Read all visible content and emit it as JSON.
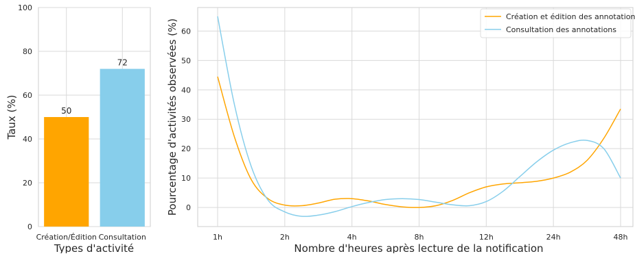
{
  "chart_data": [
    {
      "type": "bar",
      "categories": [
        "Création/Édition",
        "Consultation"
      ],
      "values": [
        50,
        72
      ],
      "data_labels": [
        "50",
        "72"
      ],
      "colors": [
        "#ffa500",
        "#87ceeb"
      ],
      "xlabel": "Types d'activité",
      "ylabel": "Taux (%)",
      "ylim": [
        0,
        100
      ],
      "yticks": [
        "0",
        "20",
        "40",
        "60",
        "80",
        "100"
      ],
      "grid": true
    },
    {
      "type": "line",
      "categories": [
        "1h",
        "2h",
        "4h",
        "8h",
        "12h",
        "24h",
        "48h"
      ],
      "series": [
        {
          "name": "Création et édition des annotations",
          "color": "#ffa500",
          "points": [
            [
              0,
              44.5
            ],
            [
              0.25,
              24
            ],
            [
              0.5,
              9.5
            ],
            [
              0.75,
              3
            ],
            [
              1,
              0.8
            ],
            [
              1.25,
              0.6
            ],
            [
              1.5,
              1.5
            ],
            [
              1.75,
              2.8
            ],
            [
              2,
              3
            ],
            [
              2.25,
              2.2
            ],
            [
              2.5,
              1
            ],
            [
              2.75,
              0.2
            ],
            [
              3,
              0
            ],
            [
              3.25,
              0.6
            ],
            [
              3.5,
              2.4
            ],
            [
              3.75,
              5
            ],
            [
              4,
              7
            ],
            [
              4.25,
              8
            ],
            [
              4.5,
              8.4
            ],
            [
              4.75,
              8.9
            ],
            [
              5,
              10
            ],
            [
              5.25,
              12
            ],
            [
              5.5,
              16
            ],
            [
              5.75,
              23.5
            ],
            [
              6,
              33.5
            ]
          ]
        },
        {
          "name": "Consultation des annotations",
          "color": "#87ceeb",
          "points": [
            [
              0,
              65
            ],
            [
              0.25,
              35
            ],
            [
              0.5,
              14
            ],
            [
              0.75,
              2.5
            ],
            [
              1,
              -1.5
            ],
            [
              1.25,
              -3
            ],
            [
              1.5,
              -2.6
            ],
            [
              1.75,
              -1.4
            ],
            [
              2,
              0.3
            ],
            [
              2.25,
              1.7
            ],
            [
              2.5,
              2.7
            ],
            [
              2.75,
              3
            ],
            [
              3,
              2.7
            ],
            [
              3.25,
              1.8
            ],
            [
              3.5,
              0.9
            ],
            [
              3.75,
              0.6
            ],
            [
              4,
              2
            ],
            [
              4.25,
              5.5
            ],
            [
              4.5,
              10.5
            ],
            [
              4.75,
              15.5
            ],
            [
              5,
              19.5
            ],
            [
              5.25,
              22
            ],
            [
              5.5,
              22.8
            ],
            [
              5.75,
              20
            ],
            [
              6,
              10
            ]
          ]
        }
      ],
      "xlabel": "Nombre d'heures après lecture de la notification",
      "ylabel": "Pourcentage d'activités observées (%)",
      "ylim": [
        -6.5,
        68
      ],
      "yticks": [
        "0",
        "10",
        "20",
        "30",
        "40",
        "50",
        "60"
      ],
      "grid": true,
      "legend_position": "top-right"
    }
  ]
}
